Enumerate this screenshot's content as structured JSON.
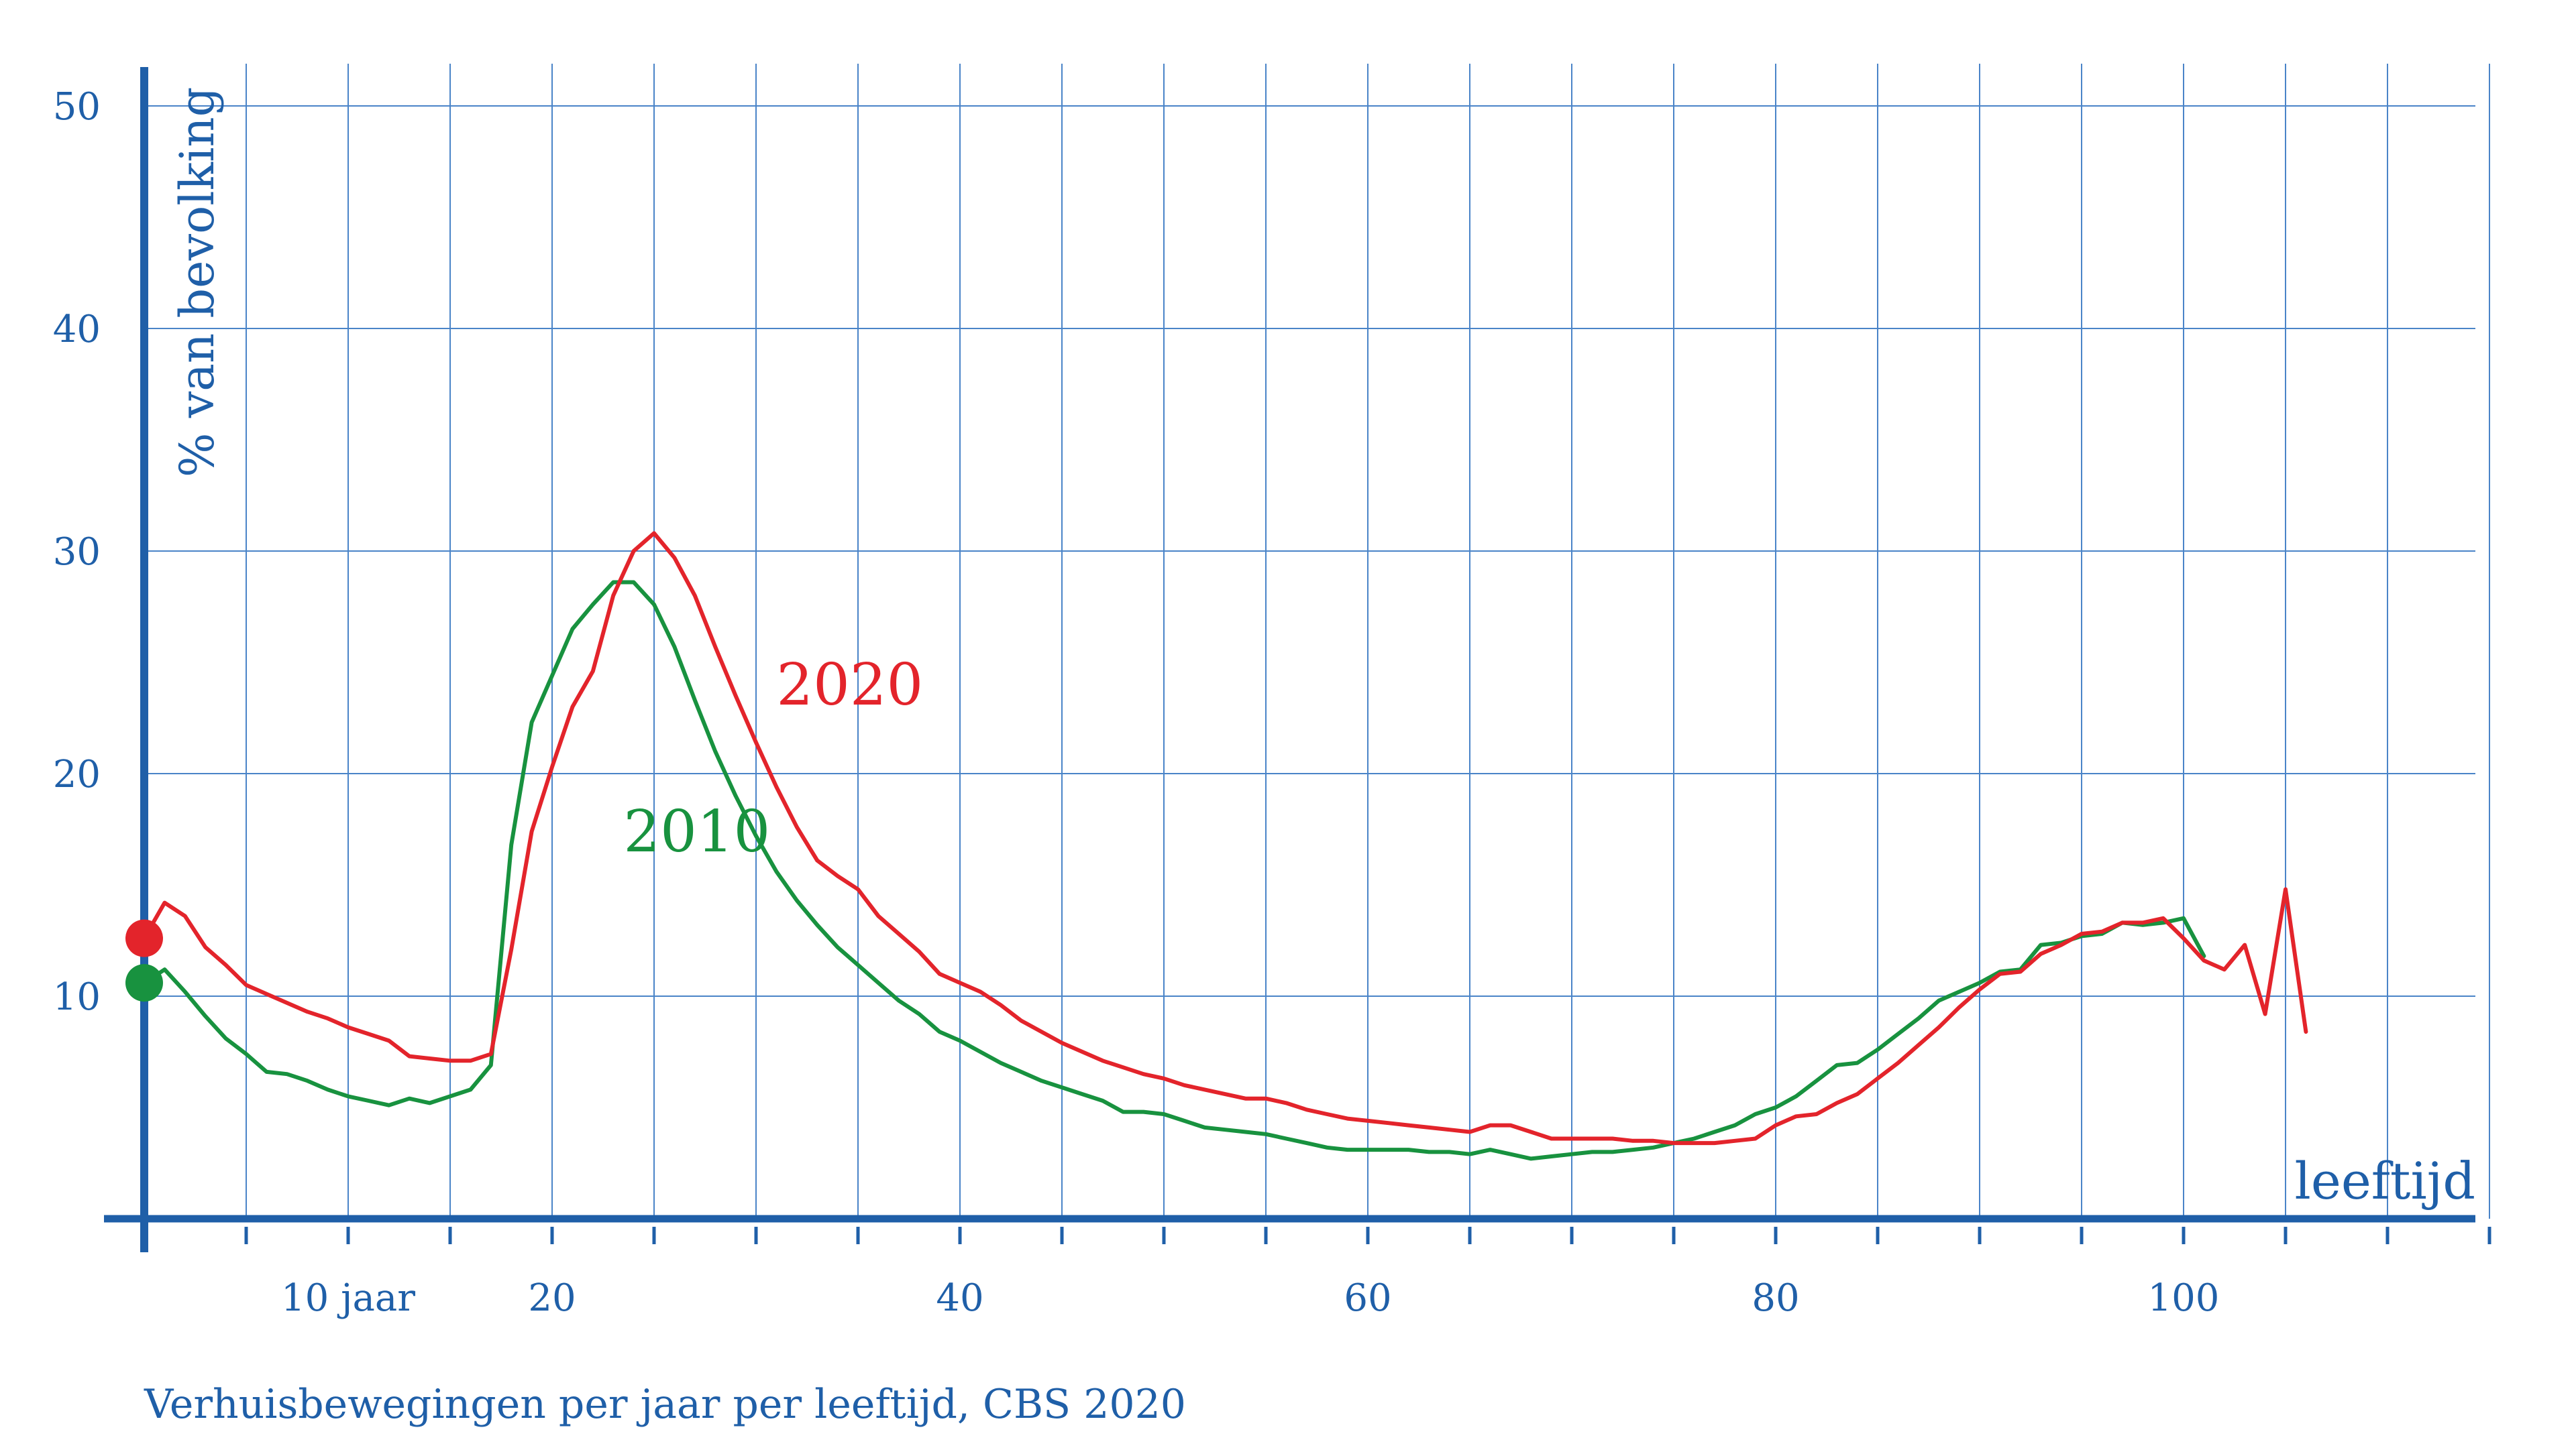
{
  "chart_data": {
    "type": "line",
    "title": "",
    "caption": "Verhuisbewegingen per jaar per leeftijd, CBS 2020",
    "xlabel": "leeftijd",
    "ylabel": "% van bevolking",
    "xlim": [
      0,
      115
    ],
    "ylim": [
      0,
      50
    ],
    "x_ticks": [
      {
        "value": 10,
        "label": "10 jaar"
      },
      {
        "value": 20,
        "label": "20"
      },
      {
        "value": 40,
        "label": "40"
      },
      {
        "value": 60,
        "label": "60"
      },
      {
        "value": 80,
        "label": "80"
      },
      {
        "value": 100,
        "label": "100"
      }
    ],
    "y_ticks": [
      {
        "value": 10,
        "label": "10"
      },
      {
        "value": 20,
        "label": "20"
      },
      {
        "value": 30,
        "label": "30"
      },
      {
        "value": 40,
        "label": "40"
      },
      {
        "value": 50,
        "label": "50"
      }
    ],
    "grid": true,
    "legend": "inline labels",
    "axis_color": "#1f5fa8",
    "grid_color": "#4a84c8",
    "series": [
      {
        "name": "2010",
        "color": "#18923f",
        "label_at": [
          23.5,
          16.5
        ],
        "points": [
          [
            0,
            10.6
          ],
          [
            1,
            11.2
          ],
          [
            2,
            10.2
          ],
          [
            3,
            9.1
          ],
          [
            4,
            8.1
          ],
          [
            5,
            7.4
          ],
          [
            6,
            6.6
          ],
          [
            7,
            6.5
          ],
          [
            8,
            6.2
          ],
          [
            9,
            5.8
          ],
          [
            10,
            5.5
          ],
          [
            11,
            5.3
          ],
          [
            12,
            5.1
          ],
          [
            13,
            5.4
          ],
          [
            14,
            5.2
          ],
          [
            15,
            5.5
          ],
          [
            16,
            5.8
          ],
          [
            17,
            6.9
          ],
          [
            18,
            16.8
          ],
          [
            19,
            22.3
          ],
          [
            20,
            24.4
          ],
          [
            21,
            26.5
          ],
          [
            22,
            27.6
          ],
          [
            23,
            28.6
          ],
          [
            24,
            28.6
          ],
          [
            25,
            27.6
          ],
          [
            26,
            25.7
          ],
          [
            27,
            23.3
          ],
          [
            28,
            21.0
          ],
          [
            29,
            19.0
          ],
          [
            30,
            17.2
          ],
          [
            31,
            15.6
          ],
          [
            32,
            14.3
          ],
          [
            33,
            13.2
          ],
          [
            34,
            12.2
          ],
          [
            35,
            11.4
          ],
          [
            36,
            10.6
          ],
          [
            37,
            9.8
          ],
          [
            38,
            9.2
          ],
          [
            39,
            8.4
          ],
          [
            40,
            8.0
          ],
          [
            41,
            7.5
          ],
          [
            42,
            7.0
          ],
          [
            43,
            6.6
          ],
          [
            44,
            6.2
          ],
          [
            45,
            5.9
          ],
          [
            46,
            5.6
          ],
          [
            47,
            5.3
          ],
          [
            48,
            4.8
          ],
          [
            49,
            4.8
          ],
          [
            50,
            4.7
          ],
          [
            51,
            4.4
          ],
          [
            52,
            4.1
          ],
          [
            53,
            4.0
          ],
          [
            54,
            3.9
          ],
          [
            55,
            3.8
          ],
          [
            56,
            3.6
          ],
          [
            57,
            3.4
          ],
          [
            58,
            3.2
          ],
          [
            59,
            3.1
          ],
          [
            60,
            3.1
          ],
          [
            61,
            3.1
          ],
          [
            62,
            3.1
          ],
          [
            63,
            3.0
          ],
          [
            64,
            3.0
          ],
          [
            65,
            2.9
          ],
          [
            66,
            3.1
          ],
          [
            67,
            2.9
          ],
          [
            68,
            2.7
          ],
          [
            69,
            2.8
          ],
          [
            70,
            2.9
          ],
          [
            71,
            3.0
          ],
          [
            72,
            3.0
          ],
          [
            73,
            3.1
          ],
          [
            74,
            3.2
          ],
          [
            75,
            3.4
          ],
          [
            76,
            3.6
          ],
          [
            77,
            3.9
          ],
          [
            78,
            4.2
          ],
          [
            79,
            4.7
          ],
          [
            80,
            5.0
          ],
          [
            81,
            5.5
          ],
          [
            82,
            6.2
          ],
          [
            83,
            6.9
          ],
          [
            84,
            7.0
          ],
          [
            85,
            7.6
          ],
          [
            86,
            8.3
          ],
          [
            87,
            9.0
          ],
          [
            88,
            9.8
          ],
          [
            89,
            10.2
          ],
          [
            90,
            10.6
          ],
          [
            91,
            11.1
          ],
          [
            92,
            11.2
          ],
          [
            93,
            12.3
          ],
          [
            94,
            12.4
          ],
          [
            95,
            12.7
          ],
          [
            96,
            12.8
          ],
          [
            97,
            13.3
          ],
          [
            98,
            13.2
          ],
          [
            99,
            13.3
          ],
          [
            100,
            13.5
          ],
          [
            101,
            11.8
          ]
        ]
      },
      {
        "name": "2020",
        "color": "#e3242b",
        "label_at": [
          31.0,
          23.1
        ],
        "points": [
          [
            0,
            12.6
          ],
          [
            1,
            14.2
          ],
          [
            2,
            13.6
          ],
          [
            3,
            12.2
          ],
          [
            4,
            11.4
          ],
          [
            5,
            10.5
          ],
          [
            6,
            10.1
          ],
          [
            7,
            9.7
          ],
          [
            8,
            9.3
          ],
          [
            9,
            9.0
          ],
          [
            10,
            8.6
          ],
          [
            11,
            8.3
          ],
          [
            12,
            8.0
          ],
          [
            13,
            7.3
          ],
          [
            14,
            7.2
          ],
          [
            15,
            7.1
          ],
          [
            16,
            7.1
          ],
          [
            17,
            7.4
          ],
          [
            18,
            12.1
          ],
          [
            19,
            17.4
          ],
          [
            20,
            20.3
          ],
          [
            21,
            23.0
          ],
          [
            22,
            24.6
          ],
          [
            23,
            28.0
          ],
          [
            24,
            30.0
          ],
          [
            25,
            30.8
          ],
          [
            26,
            29.7
          ],
          [
            27,
            28.0
          ],
          [
            28,
            25.7
          ],
          [
            29,
            23.5
          ],
          [
            30,
            21.4
          ],
          [
            31,
            19.4
          ],
          [
            32,
            17.6
          ],
          [
            33,
            16.1
          ],
          [
            34,
            15.4
          ],
          [
            35,
            14.8
          ],
          [
            36,
            13.6
          ],
          [
            37,
            12.8
          ],
          [
            38,
            12.0
          ],
          [
            39,
            11.0
          ],
          [
            40,
            10.6
          ],
          [
            41,
            10.2
          ],
          [
            42,
            9.6
          ],
          [
            43,
            8.9
          ],
          [
            44,
            8.4
          ],
          [
            45,
            7.9
          ],
          [
            46,
            7.5
          ],
          [
            47,
            7.1
          ],
          [
            48,
            6.8
          ],
          [
            49,
            6.5
          ],
          [
            50,
            6.3
          ],
          [
            51,
            6.0
          ],
          [
            52,
            5.8
          ],
          [
            53,
            5.6
          ],
          [
            54,
            5.4
          ],
          [
            55,
            5.4
          ],
          [
            56,
            5.2
          ],
          [
            57,
            4.9
          ],
          [
            58,
            4.7
          ],
          [
            59,
            4.5
          ],
          [
            60,
            4.4
          ],
          [
            61,
            4.3
          ],
          [
            62,
            4.2
          ],
          [
            63,
            4.1
          ],
          [
            64,
            4.0
          ],
          [
            65,
            3.9
          ],
          [
            66,
            4.2
          ],
          [
            67,
            4.2
          ],
          [
            68,
            3.9
          ],
          [
            69,
            3.6
          ],
          [
            70,
            3.6
          ],
          [
            71,
            3.6
          ],
          [
            72,
            3.6
          ],
          [
            73,
            3.5
          ],
          [
            74,
            3.5
          ],
          [
            75,
            3.4
          ],
          [
            76,
            3.4
          ],
          [
            77,
            3.4
          ],
          [
            78,
            3.5
          ],
          [
            79,
            3.6
          ],
          [
            80,
            4.2
          ],
          [
            81,
            4.6
          ],
          [
            82,
            4.7
          ],
          [
            83,
            5.2
          ],
          [
            84,
            5.6
          ],
          [
            85,
            6.3
          ],
          [
            86,
            7.0
          ],
          [
            87,
            7.8
          ],
          [
            88,
            8.6
          ],
          [
            89,
            9.5
          ],
          [
            90,
            10.3
          ],
          [
            91,
            11.0
          ],
          [
            92,
            11.1
          ],
          [
            93,
            11.9
          ],
          [
            94,
            12.3
          ],
          [
            95,
            12.8
          ],
          [
            96,
            12.9
          ],
          [
            97,
            13.3
          ],
          [
            98,
            13.3
          ],
          [
            99,
            13.5
          ],
          [
            100,
            12.6
          ],
          [
            101,
            11.6
          ],
          [
            102,
            11.2
          ],
          [
            103,
            12.3
          ],
          [
            104,
            9.2
          ],
          [
            105,
            14.8
          ],
          [
            106,
            8.4
          ]
        ]
      }
    ]
  }
}
